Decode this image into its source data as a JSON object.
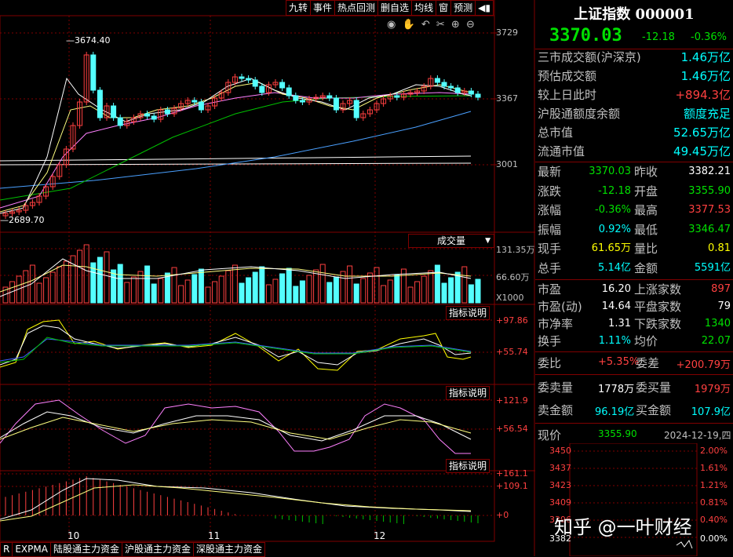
{
  "toolbar": {
    "buttons": [
      "九转",
      "事件",
      "热点回测",
      "删自选",
      "均线",
      "窗",
      "预测"
    ]
  },
  "kline": {
    "y_labels": [
      "3729",
      "3367",
      "3001"
    ],
    "high_label": "3674.40",
    "low_label": "2689.70",
    "x_labels": [
      "10",
      "11",
      "12"
    ]
  },
  "volume": {
    "selector": "成交量",
    "y_labels": [
      "131.35万",
      "66.60万"
    ],
    "unit": "X1000"
  },
  "ind1": {
    "button": "指标说明",
    "y_labels": [
      "+97.86",
      "+55.74"
    ]
  },
  "ind2": {
    "button": "指标说明",
    "y_labels": [
      "+121.9",
      "+56.54"
    ]
  },
  "ind3": {
    "button": "指标说明",
    "y_labels": [
      "+161.1",
      "+109.1",
      "+0"
    ]
  },
  "bottom_tabs": [
    "R",
    "EXPMA",
    "陆股通主力资金",
    "沪股通主力资金",
    "深股通主力资金"
  ],
  "quote": {
    "title": "上证指数 000001",
    "price": "3370.03",
    "change": "-12.18",
    "change_pct": "-0.36%",
    "summary": [
      {
        "label": "三市成交额(沪深京)",
        "value": "1.46万亿",
        "color": "#00ffff"
      },
      {
        "label": "预估成交额",
        "value": "1.46万亿",
        "color": "#00ffff"
      },
      {
        "label": "较上日此时",
        "value": "+894.3亿",
        "color": "#ff4040"
      },
      {
        "label": "沪股通额度余额",
        "value": "额度充足",
        "color": "#00ffff"
      },
      {
        "label": "总市值",
        "value": "52.65万亿",
        "color": "#00ffff"
      },
      {
        "label": "流通市值",
        "value": "49.45万亿",
        "color": "#00ffff"
      }
    ],
    "grid": [
      [
        "最新",
        "3370.03",
        "昨收",
        "3382.21"
      ],
      [
        "涨跌",
        "-12.18",
        "开盘",
        "3355.90"
      ],
      [
        "涨幅",
        "-0.36%",
        "最高",
        "3377.53"
      ],
      [
        "振幅",
        "0.92%",
        "最低",
        "3346.47"
      ],
      [
        "现手",
        "61.65万",
        "量比",
        "0.81"
      ],
      [
        "总手",
        "5.14亿",
        "金额",
        "5591亿"
      ]
    ],
    "grid_colors": [
      [
        "#00e000",
        "#ffffff"
      ],
      [
        "#00e000",
        "#00e000"
      ],
      [
        "#00e000",
        "#ff4040"
      ],
      [
        "#00ffff",
        "#00e000"
      ],
      [
        "#ffff00",
        "#ffff00"
      ],
      [
        "#00ffff",
        "#00ffff"
      ]
    ],
    "grid2": [
      [
        "市盈",
        "16.20",
        "上涨家数",
        "897"
      ],
      [
        "市盈(动)",
        "14.64",
        "平盘家数",
        "79"
      ],
      [
        "市净率",
        "1.31",
        "下跌家数",
        "1340"
      ],
      [
        "换手",
        "1.11%",
        "均价",
        "22.07"
      ]
    ],
    "grid2_colors": [
      [
        "#ffffff",
        "#ff4040"
      ],
      [
        "#ffffff",
        "#ffffff"
      ],
      [
        "#ffffff",
        "#00e000"
      ],
      [
        "#00ffff",
        "#00e000"
      ]
    ],
    "weibi_label": "委比",
    "weibi": "+5.35%",
    "weicha_label": "委差",
    "weicha": "+200.79万",
    "sell_vol_label": "委卖量",
    "sell_vol": "1778万",
    "buy_vol_label": "委买量",
    "buy_vol": "1979万",
    "sell_amt_label": "卖金额",
    "sell_amt": "96.19亿",
    "buy_amt_label": "买金额",
    "buy_amt": "107.9亿",
    "now_label": "现价",
    "now_price": "3355.90",
    "date": "2024-12-19,四"
  },
  "mini_chart": {
    "left_labels": [
      "3450",
      "3437",
      "3423",
      "3409",
      "3396",
      "3382"
    ],
    "right_labels": [
      "2.00%",
      "1.61%",
      "1.21%",
      "0.81%",
      "0.40%",
      "0.00%"
    ]
  },
  "watermark": "知乎 @一叶财经",
  "colors": {
    "up": "#ff4040",
    "down": "#54ffff",
    "border": "#800000"
  }
}
